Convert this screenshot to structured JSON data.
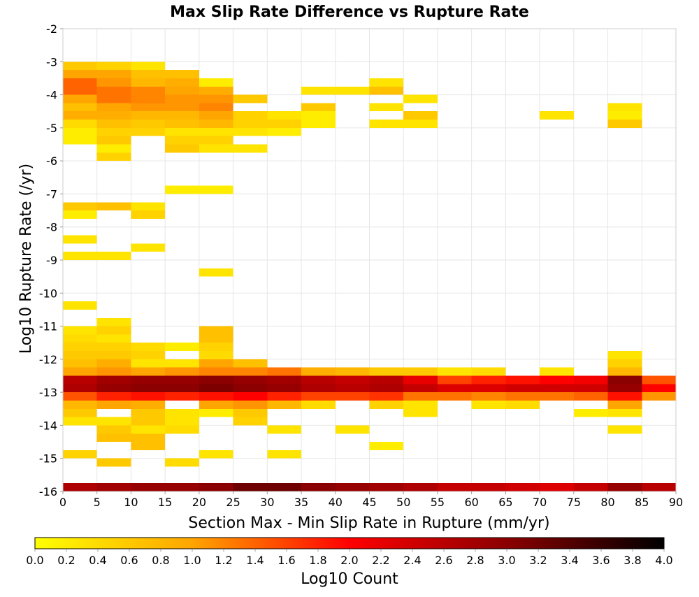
{
  "chart_data": {
    "type": "heatmap",
    "title": "Max Slip Rate Difference vs Rupture Rate",
    "xlabel": "Section Max - Min Slip Rate in Rupture (mm/yr)",
    "ylabel": "Log10 Rupture Rate (/yr)",
    "xlim": [
      0,
      90
    ],
    "ylim": [
      -16,
      -2
    ],
    "x_ticks": [
      0,
      5,
      10,
      15,
      20,
      25,
      30,
      35,
      40,
      45,
      50,
      55,
      60,
      65,
      70,
      75,
      80,
      85,
      90
    ],
    "y_ticks": [
      -16,
      -15,
      -14,
      -13,
      -12,
      -11,
      -10,
      -9,
      -8,
      -7,
      -6,
      -5,
      -4,
      -3,
      -2
    ],
    "x_bin_width": 5,
    "y_bin_width": 0.25,
    "grid": true,
    "colorbar": {
      "label": "Log10 Count",
      "range": [
        0,
        4
      ],
      "ticks": [
        "0.0",
        "0.2",
        "0.4",
        "0.6",
        "0.8",
        "1.0",
        "1.2",
        "1.4",
        "1.6",
        "1.8",
        "2.0",
        "2.2",
        "2.4",
        "2.6",
        "2.8",
        "3.0",
        "3.2",
        "3.4",
        "3.6",
        "3.8",
        "4.0"
      ],
      "colors": [
        "#ffff00",
        "#ffa500",
        "#ff0000",
        "#8b0000",
        "#000000"
      ],
      "placement": "bottom"
    },
    "cells": [
      {
        "x": 0,
        "y": -3.125,
        "v": 0.6
      },
      {
        "x": 5,
        "y": -3.125,
        "v": 0.5
      },
      {
        "x": 10,
        "y": -3.125,
        "v": 0.3
      },
      {
        "x": 0,
        "y": -3.375,
        "v": 1.0
      },
      {
        "x": 5,
        "y": -3.375,
        "v": 1.0
      },
      {
        "x": 10,
        "y": -3.375,
        "v": 0.7
      },
      {
        "x": 15,
        "y": -3.375,
        "v": 0.7
      },
      {
        "x": 0,
        "y": -3.625,
        "v": 1.4
      },
      {
        "x": 5,
        "y": -3.625,
        "v": 1.1
      },
      {
        "x": 10,
        "y": -3.625,
        "v": 0.8
      },
      {
        "x": 15,
        "y": -3.625,
        "v": 0.9
      },
      {
        "x": 20,
        "y": -3.625,
        "v": 0.2
      },
      {
        "x": 45,
        "y": -3.625,
        "v": 0.3
      },
      {
        "x": 0,
        "y": -3.875,
        "v": 1.4
      },
      {
        "x": 5,
        "y": -3.875,
        "v": 1.3
      },
      {
        "x": 10,
        "y": -3.875,
        "v": 1.2
      },
      {
        "x": 15,
        "y": -3.875,
        "v": 1.0
      },
      {
        "x": 20,
        "y": -3.875,
        "v": 0.9
      },
      {
        "x": 35,
        "y": -3.875,
        "v": 0.3
      },
      {
        "x": 40,
        "y": -3.875,
        "v": 0.3
      },
      {
        "x": 45,
        "y": -3.875,
        "v": 0.7
      },
      {
        "x": 0,
        "y": -4.125,
        "v": 1.0
      },
      {
        "x": 5,
        "y": -4.125,
        "v": 1.3
      },
      {
        "x": 10,
        "y": -4.125,
        "v": 1.2
      },
      {
        "x": 15,
        "y": -4.125,
        "v": 1.1
      },
      {
        "x": 20,
        "y": -4.125,
        "v": 1.1
      },
      {
        "x": 25,
        "y": -4.125,
        "v": 0.6
      },
      {
        "x": 50,
        "y": -4.125,
        "v": 0.3
      },
      {
        "x": 0,
        "y": -4.375,
        "v": 0.7
      },
      {
        "x": 5,
        "y": -4.375,
        "v": 1.0
      },
      {
        "x": 10,
        "y": -4.375,
        "v": 1.1
      },
      {
        "x": 15,
        "y": -4.375,
        "v": 1.1
      },
      {
        "x": 20,
        "y": -4.375,
        "v": 1.2
      },
      {
        "x": 35,
        "y": -4.375,
        "v": 0.6
      },
      {
        "x": 45,
        "y": -4.375,
        "v": 0.3
      },
      {
        "x": 80,
        "y": -4.375,
        "v": 0.3
      },
      {
        "x": 0,
        "y": -4.625,
        "v": 0.9
      },
      {
        "x": 5,
        "y": -4.625,
        "v": 0.9
      },
      {
        "x": 10,
        "y": -4.625,
        "v": 0.8
      },
      {
        "x": 15,
        "y": -4.625,
        "v": 0.8
      },
      {
        "x": 20,
        "y": -4.625,
        "v": 1.0
      },
      {
        "x": 25,
        "y": -4.625,
        "v": 0.5
      },
      {
        "x": 30,
        "y": -4.625,
        "v": 0.3
      },
      {
        "x": 35,
        "y": -4.625,
        "v": 0.2
      },
      {
        "x": 50,
        "y": -4.625,
        "v": 0.6
      },
      {
        "x": 70,
        "y": -4.625,
        "v": 0.3
      },
      {
        "x": 80,
        "y": -4.625,
        "v": 0.2
      },
      {
        "x": 0,
        "y": -4.875,
        "v": 0.4
      },
      {
        "x": 5,
        "y": -4.875,
        "v": 0.7
      },
      {
        "x": 10,
        "y": -4.875,
        "v": 0.6
      },
      {
        "x": 15,
        "y": -4.875,
        "v": 0.7
      },
      {
        "x": 20,
        "y": -4.875,
        "v": 0.8
      },
      {
        "x": 25,
        "y": -4.875,
        "v": 0.5
      },
      {
        "x": 30,
        "y": -4.875,
        "v": 0.5
      },
      {
        "x": 35,
        "y": -4.875,
        "v": 0.2
      },
      {
        "x": 45,
        "y": -4.875,
        "v": 0.3
      },
      {
        "x": 50,
        "y": -4.875,
        "v": 0.3
      },
      {
        "x": 80,
        "y": -4.875,
        "v": 0.6
      },
      {
        "x": 0,
        "y": -5.125,
        "v": 0.2
      },
      {
        "x": 5,
        "y": -5.125,
        "v": 0.5
      },
      {
        "x": 10,
        "y": -5.125,
        "v": 0.5
      },
      {
        "x": 15,
        "y": -5.125,
        "v": 0.3
      },
      {
        "x": 20,
        "y": -5.125,
        "v": 0.3
      },
      {
        "x": 25,
        "y": -5.125,
        "v": 0.3
      },
      {
        "x": 30,
        "y": -5.125,
        "v": 0.2
      },
      {
        "x": 0,
        "y": -5.375,
        "v": 0.2
      },
      {
        "x": 5,
        "y": -5.375,
        "v": 0.6
      },
      {
        "x": 15,
        "y": -5.375,
        "v": 0.5
      },
      {
        "x": 20,
        "y": -5.375,
        "v": 0.5
      },
      {
        "x": 5,
        "y": -5.625,
        "v": 0.2
      },
      {
        "x": 15,
        "y": -5.625,
        "v": 0.6
      },
      {
        "x": 20,
        "y": -5.625,
        "v": 0.3
      },
      {
        "x": 25,
        "y": -5.625,
        "v": 0.3
      },
      {
        "x": 5,
        "y": -5.875,
        "v": 0.5
      },
      {
        "x": 15,
        "y": -6.875,
        "v": 0.2
      },
      {
        "x": 20,
        "y": -6.875,
        "v": 0.2
      },
      {
        "x": 0,
        "y": -7.375,
        "v": 0.6
      },
      {
        "x": 5,
        "y": -7.375,
        "v": 0.7
      },
      {
        "x": 10,
        "y": -7.375,
        "v": 0.3
      },
      {
        "x": 0,
        "y": -7.625,
        "v": 0.2
      },
      {
        "x": 10,
        "y": -7.625,
        "v": 0.5
      },
      {
        "x": 0,
        "y": -8.375,
        "v": 0.3
      },
      {
        "x": 10,
        "y": -8.625,
        "v": 0.3
      },
      {
        "x": 0,
        "y": -8.875,
        "v": 0.3
      },
      {
        "x": 5,
        "y": -8.875,
        "v": 0.3
      },
      {
        "x": 20,
        "y": -9.375,
        "v": 0.3
      },
      {
        "x": 0,
        "y": -10.375,
        "v": 0.3
      },
      {
        "x": 5,
        "y": -10.875,
        "v": 0.3
      },
      {
        "x": 0,
        "y": -11.125,
        "v": 0.3
      },
      {
        "x": 5,
        "y": -11.125,
        "v": 0.5
      },
      {
        "x": 20,
        "y": -11.125,
        "v": 0.7
      },
      {
        "x": 0,
        "y": -11.375,
        "v": 0.4
      },
      {
        "x": 5,
        "y": -11.375,
        "v": 0.3
      },
      {
        "x": 20,
        "y": -11.375,
        "v": 0.7
      },
      {
        "x": 0,
        "y": -11.625,
        "v": 0.5
      },
      {
        "x": 5,
        "y": -11.625,
        "v": 0.5
      },
      {
        "x": 10,
        "y": -11.625,
        "v": 0.4
      },
      {
        "x": 15,
        "y": -11.625,
        "v": 0.2
      },
      {
        "x": 20,
        "y": -11.625,
        "v": 0.5
      },
      {
        "x": 0,
        "y": -11.875,
        "v": 0.6
      },
      {
        "x": 5,
        "y": -11.875,
        "v": 0.6
      },
      {
        "x": 10,
        "y": -11.875,
        "v": 0.5
      },
      {
        "x": 20,
        "y": -11.875,
        "v": 0.4
      },
      {
        "x": 80,
        "y": -11.875,
        "v": 0.3
      },
      {
        "x": 0,
        "y": -12.125,
        "v": 0.7
      },
      {
        "x": 5,
        "y": -12.125,
        "v": 0.9
      },
      {
        "x": 10,
        "y": -12.125,
        "v": 0.3
      },
      {
        "x": 15,
        "y": -12.125,
        "v": 0.3
      },
      {
        "x": 20,
        "y": -12.125,
        "v": 1.0
      },
      {
        "x": 25,
        "y": -12.125,
        "v": 0.7
      },
      {
        "x": 80,
        "y": -12.125,
        "v": 0.5
      },
      {
        "x": 0,
        "y": -12.375,
        "v": 1.0
      },
      {
        "x": 5,
        "y": -12.375,
        "v": 1.1
      },
      {
        "x": 10,
        "y": -12.375,
        "v": 1.0
      },
      {
        "x": 15,
        "y": -12.375,
        "v": 1.1
      },
      {
        "x": 20,
        "y": -12.375,
        "v": 1.2
      },
      {
        "x": 25,
        "y": -12.375,
        "v": 1.2
      },
      {
        "x": 30,
        "y": -12.375,
        "v": 1.3
      },
      {
        "x": 35,
        "y": -12.375,
        "v": 0.9
      },
      {
        "x": 40,
        "y": -12.375,
        "v": 0.8
      },
      {
        "x": 45,
        "y": -12.375,
        "v": 0.6
      },
      {
        "x": 50,
        "y": -12.375,
        "v": 0.6
      },
      {
        "x": 55,
        "y": -12.375,
        "v": 0.3
      },
      {
        "x": 60,
        "y": -12.375,
        "v": 0.4
      },
      {
        "x": 70,
        "y": -12.375,
        "v": 0.3
      },
      {
        "x": 80,
        "y": -12.375,
        "v": 0.8
      },
      {
        "x": 0,
        "y": -12.625,
        "v": 2.6
      },
      {
        "x": 5,
        "y": -12.625,
        "v": 2.8
      },
      {
        "x": 10,
        "y": -12.625,
        "v": 2.9
      },
      {
        "x": 15,
        "y": -12.625,
        "v": 2.9
      },
      {
        "x": 20,
        "y": -12.625,
        "v": 3.0
      },
      {
        "x": 25,
        "y": -12.625,
        "v": 2.9
      },
      {
        "x": 30,
        "y": -12.625,
        "v": 2.8
      },
      {
        "x": 35,
        "y": -12.625,
        "v": 2.6
      },
      {
        "x": 40,
        "y": -12.625,
        "v": 2.5
      },
      {
        "x": 45,
        "y": -12.625,
        "v": 2.6
      },
      {
        "x": 50,
        "y": -12.625,
        "v": 2.2
      },
      {
        "x": 55,
        "y": -12.625,
        "v": 1.6
      },
      {
        "x": 60,
        "y": -12.625,
        "v": 1.8
      },
      {
        "x": 65,
        "y": -12.625,
        "v": 1.9
      },
      {
        "x": 70,
        "y": -12.625,
        "v": 2.0
      },
      {
        "x": 75,
        "y": -12.625,
        "v": 2.1
      },
      {
        "x": 80,
        "y": -12.625,
        "v": 3.0
      },
      {
        "x": 85,
        "y": -12.625,
        "v": 1.5
      },
      {
        "x": 0,
        "y": -12.875,
        "v": 2.7
      },
      {
        "x": 5,
        "y": -12.875,
        "v": 2.9
      },
      {
        "x": 10,
        "y": -12.875,
        "v": 3.0
      },
      {
        "x": 15,
        "y": -12.875,
        "v": 3.0
      },
      {
        "x": 20,
        "y": -12.875,
        "v": 3.1
      },
      {
        "x": 25,
        "y": -12.875,
        "v": 3.0
      },
      {
        "x": 30,
        "y": -12.875,
        "v": 2.9
      },
      {
        "x": 35,
        "y": -12.875,
        "v": 2.7
      },
      {
        "x": 40,
        "y": -12.875,
        "v": 2.6
      },
      {
        "x": 45,
        "y": -12.875,
        "v": 2.7
      },
      {
        "x": 50,
        "y": -12.875,
        "v": 2.5
      },
      {
        "x": 55,
        "y": -12.875,
        "v": 2.3
      },
      {
        "x": 60,
        "y": -12.875,
        "v": 2.3
      },
      {
        "x": 65,
        "y": -12.875,
        "v": 2.4
      },
      {
        "x": 70,
        "y": -12.875,
        "v": 2.4
      },
      {
        "x": 75,
        "y": -12.875,
        "v": 2.4
      },
      {
        "x": 80,
        "y": -12.875,
        "v": 2.9
      },
      {
        "x": 85,
        "y": -12.875,
        "v": 2.0
      },
      {
        "x": 0,
        "y": -13.125,
        "v": 1.5
      },
      {
        "x": 5,
        "y": -13.125,
        "v": 1.8
      },
      {
        "x": 10,
        "y": -13.125,
        "v": 1.9
      },
      {
        "x": 15,
        "y": -13.125,
        "v": 1.8
      },
      {
        "x": 20,
        "y": -13.125,
        "v": 1.9
      },
      {
        "x": 25,
        "y": -13.125,
        "v": 2.0
      },
      {
        "x": 30,
        "y": -13.125,
        "v": 1.8
      },
      {
        "x": 35,
        "y": -13.125,
        "v": 1.6
      },
      {
        "x": 40,
        "y": -13.125,
        "v": 1.6
      },
      {
        "x": 45,
        "y": -13.125,
        "v": 1.7
      },
      {
        "x": 50,
        "y": -13.125,
        "v": 1.3
      },
      {
        "x": 55,
        "y": -13.125,
        "v": 1.3
      },
      {
        "x": 60,
        "y": -13.125,
        "v": 1.2
      },
      {
        "x": 65,
        "y": -13.125,
        "v": 1.3
      },
      {
        "x": 70,
        "y": -13.125,
        "v": 1.3
      },
      {
        "x": 75,
        "y": -13.125,
        "v": 1.4
      },
      {
        "x": 80,
        "y": -13.125,
        "v": 1.9
      },
      {
        "x": 85,
        "y": -13.125,
        "v": 1.1
      },
      {
        "x": 0,
        "y": -13.375,
        "v": 0.8
      },
      {
        "x": 5,
        "y": -13.375,
        "v": 1.0
      },
      {
        "x": 10,
        "y": -13.375,
        "v": 0.9
      },
      {
        "x": 20,
        "y": -13.375,
        "v": 1.0
      },
      {
        "x": 25,
        "y": -13.375,
        "v": 1.1
      },
      {
        "x": 30,
        "y": -13.375,
        "v": 0.8
      },
      {
        "x": 35,
        "y": -13.375,
        "v": 0.4
      },
      {
        "x": 45,
        "y": -13.375,
        "v": 0.5
      },
      {
        "x": 50,
        "y": -13.375,
        "v": 0.3
      },
      {
        "x": 60,
        "y": -13.375,
        "v": 0.3
      },
      {
        "x": 65,
        "y": -13.375,
        "v": 0.4
      },
      {
        "x": 80,
        "y": -13.375,
        "v": 1.0
      },
      {
        "x": 0,
        "y": -13.625,
        "v": 0.6
      },
      {
        "x": 10,
        "y": -13.625,
        "v": 0.6
      },
      {
        "x": 15,
        "y": -13.625,
        "v": 0.3
      },
      {
        "x": 20,
        "y": -13.625,
        "v": 0.2
      },
      {
        "x": 25,
        "y": -13.625,
        "v": 0.6
      },
      {
        "x": 50,
        "y": -13.625,
        "v": 0.3
      },
      {
        "x": 75,
        "y": -13.625,
        "v": 0.2
      },
      {
        "x": 80,
        "y": -13.625,
        "v": 0.3
      },
      {
        "x": 0,
        "y": -13.875,
        "v": 0.3
      },
      {
        "x": 5,
        "y": -13.875,
        "v": 0.3
      },
      {
        "x": 10,
        "y": -13.875,
        "v": 0.6
      },
      {
        "x": 15,
        "y": -13.875,
        "v": 0.3
      },
      {
        "x": 25,
        "y": -13.875,
        "v": 0.5
      },
      {
        "x": 5,
        "y": -14.125,
        "v": 0.6
      },
      {
        "x": 10,
        "y": -14.125,
        "v": 0.3
      },
      {
        "x": 15,
        "y": -14.125,
        "v": 0.4
      },
      {
        "x": 30,
        "y": -14.125,
        "v": 0.3
      },
      {
        "x": 40,
        "y": -14.125,
        "v": 0.3
      },
      {
        "x": 80,
        "y": -14.125,
        "v": 0.3
      },
      {
        "x": 5,
        "y": -14.375,
        "v": 0.7
      },
      {
        "x": 10,
        "y": -14.375,
        "v": 0.7
      },
      {
        "x": 10,
        "y": -14.625,
        "v": 0.7
      },
      {
        "x": 45,
        "y": -14.625,
        "v": 0.2
      },
      {
        "x": 0,
        "y": -14.875,
        "v": 0.5
      },
      {
        "x": 20,
        "y": -14.875,
        "v": 0.3
      },
      {
        "x": 30,
        "y": -14.875,
        "v": 0.3
      },
      {
        "x": 5,
        "y": -15.125,
        "v": 0.6
      },
      {
        "x": 15,
        "y": -15.125,
        "v": 0.4
      },
      {
        "x": 0,
        "y": -15.875,
        "v": 2.7
      },
      {
        "x": 5,
        "y": -15.875,
        "v": 2.8
      },
      {
        "x": 10,
        "y": -15.875,
        "v": 2.9
      },
      {
        "x": 15,
        "y": -15.875,
        "v": 2.9
      },
      {
        "x": 20,
        "y": -15.875,
        "v": 3.0
      },
      {
        "x": 25,
        "y": -15.875,
        "v": 3.2
      },
      {
        "x": 30,
        "y": -15.875,
        "v": 3.2
      },
      {
        "x": 35,
        "y": -15.875,
        "v": 3.0
      },
      {
        "x": 40,
        "y": -15.875,
        "v": 2.9
      },
      {
        "x": 45,
        "y": -15.875,
        "v": 2.8
      },
      {
        "x": 50,
        "y": -15.875,
        "v": 2.7
      },
      {
        "x": 55,
        "y": -15.875,
        "v": 2.5
      },
      {
        "x": 60,
        "y": -15.875,
        "v": 2.5
      },
      {
        "x": 65,
        "y": -15.875,
        "v": 2.4
      },
      {
        "x": 70,
        "y": -15.875,
        "v": 2.3
      },
      {
        "x": 75,
        "y": -15.875,
        "v": 2.5
      },
      {
        "x": 80,
        "y": -15.875,
        "v": 2.9
      },
      {
        "x": 85,
        "y": -15.875,
        "v": 2.6
      }
    ]
  }
}
